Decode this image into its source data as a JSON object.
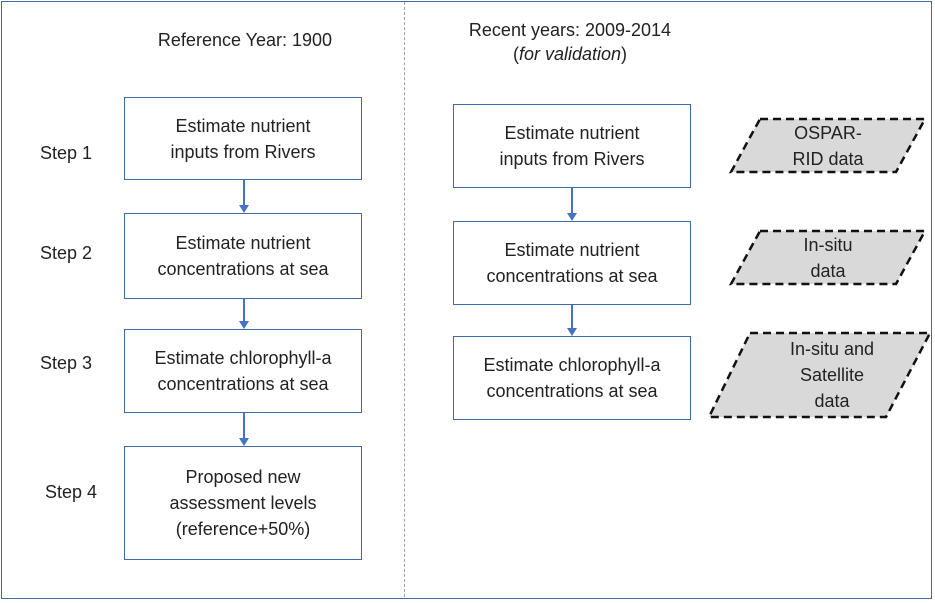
{
  "left": {
    "header": "Reference Year: 1900",
    "steps": [
      {
        "label": "Step 1",
        "box": "Estimate nutrient\ninputs from Rivers"
      },
      {
        "label": "Step 2",
        "box": "Estimate nutrient\nconcentrations at sea"
      },
      {
        "label": "Step 3",
        "box": "Estimate chlorophyll-a\nconcentrations at sea"
      },
      {
        "label": "Step 4",
        "box": "Proposed new\nassessment levels\n(reference+50%)"
      }
    ]
  },
  "right": {
    "header_line1": "Recent years: 2009-2014",
    "header_line2_open": "(",
    "header_line2_italic": "for validation",
    "header_line2_close": ")",
    "steps": [
      {
        "box": "Estimate nutrient\ninputs from Rivers",
        "data_source": "OSPAR-\nRID data"
      },
      {
        "box": "Estimate nutrient\nconcentrations at sea",
        "data_source": "In-situ\ndata"
      },
      {
        "box": "Estimate chlorophyll-a\nconcentrations at sea",
        "data_source": "In-situ and\nSatellite\ndata"
      }
    ]
  },
  "colors": {
    "box_border": "#3f6aa8",
    "arrow": "#4472c4",
    "data_fill": "#d9d9d9",
    "divider": "#9aa3ad"
  }
}
